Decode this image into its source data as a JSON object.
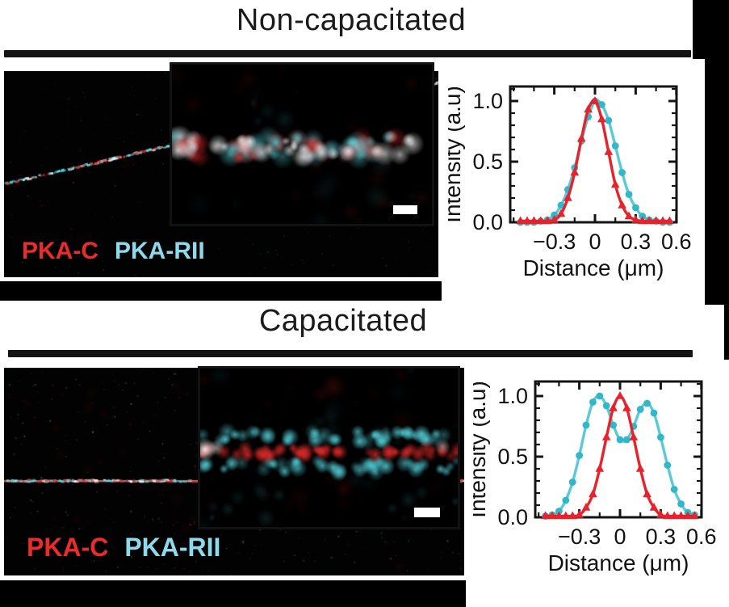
{
  "sections": [
    {
      "title": "Non-capacitated",
      "labels": {
        "red": "PKA-C",
        "cyan": "PKA-RII"
      }
    },
    {
      "title": "Capacitated",
      "labels": {
        "red": "PKA-C",
        "cyan": "PKA-RII"
      }
    }
  ],
  "colors": {
    "red": "#E9212A",
    "cyan": "#5BC9D7",
    "cyan_marker": "#30B7CA",
    "label_red": "#EE2B2B",
    "label_cyan": "#8CDAEB",
    "axis": "#141414",
    "text": "#111111",
    "bar": "#000000"
  },
  "chart_data": [
    {
      "type": "line",
      "section": "Non-capacitated",
      "xlabel": "Distance (μm)",
      "ylabel": "Intensity (a.u)",
      "xlim": [
        -0.62,
        0.63
      ],
      "ylim": [
        0,
        1.12
      ],
      "grid": false,
      "legend": "none",
      "xticks": {
        "values": [
          -0.3,
          0,
          0.3,
          0.6
        ],
        "labels": [
          "−0.3",
          "0",
          "0.3",
          "0.6"
        ],
        "minor": [
          -0.6,
          -0.45,
          -0.15,
          0.15,
          0.45
        ]
      },
      "yticks": {
        "values": [
          0,
          0.5,
          1
        ],
        "labels": [
          "0.0",
          "0.5",
          "1.0"
        ],
        "minor": [
          0.1,
          0.2,
          0.3,
          0.4,
          0.6,
          0.7,
          0.8,
          0.9,
          1.1
        ]
      },
      "x": [
        -0.55,
        -0.5,
        -0.45,
        -0.4,
        -0.35,
        -0.3,
        -0.25,
        -0.2,
        -0.15,
        -0.1,
        -0.05,
        0,
        0.05,
        0.1,
        0.15,
        0.2,
        0.25,
        0.3,
        0.35,
        0.4,
        0.45,
        0.5,
        0.55
      ],
      "series": [
        {
          "name": "PKA-RII",
          "color_key": "cyan",
          "marker": "circle",
          "values": [
            0,
            0,
            0,
            0.01,
            0.02,
            0.06,
            0.14,
            0.27,
            0.45,
            0.67,
            0.87,
            1,
            0.97,
            0.84,
            0.63,
            0.41,
            0.23,
            0.12,
            0.05,
            0.02,
            0.01,
            0,
            0
          ]
        },
        {
          "name": "PKA-C",
          "color_key": "red",
          "marker": "triangle",
          "values": [
            0.01,
            0.01,
            0.01,
            0.01,
            0.01,
            0.02,
            0.07,
            0.2,
            0.41,
            0.69,
            0.93,
            1,
            0.85,
            0.58,
            0.31,
            0.14,
            0.05,
            0.02,
            0.01,
            0.01,
            0.01,
            0.01,
            0.01
          ]
        }
      ]
    },
    {
      "type": "line",
      "section": "Capacitated",
      "xlabel": "Distance (μm)",
      "ylabel": "Intensity (a.u)",
      "xlim": [
        -0.62,
        0.63
      ],
      "ylim": [
        0,
        1.12
      ],
      "grid": false,
      "legend": "none",
      "xticks": {
        "values": [
          -0.3,
          0,
          0.3,
          0.6
        ],
        "labels": [
          "−0.3",
          "0",
          "0.3",
          "0.6"
        ],
        "minor": [
          -0.6,
          -0.45,
          -0.15,
          0.15,
          0.45
        ]
      },
      "yticks": {
        "values": [
          0,
          0.5,
          1
        ],
        "labels": [
          "0.0",
          "0.5",
          "1.0"
        ],
        "minor": [
          0.1,
          0.2,
          0.3,
          0.4,
          0.6,
          0.7,
          0.8,
          0.9,
          1.1
        ]
      },
      "x": [
        -0.55,
        -0.5,
        -0.45,
        -0.4,
        -0.35,
        -0.3,
        -0.25,
        -0.2,
        -0.15,
        -0.1,
        -0.05,
        0,
        0.05,
        0.1,
        0.15,
        0.2,
        0.25,
        0.3,
        0.35,
        0.4,
        0.45,
        0.5,
        0.55
      ],
      "series": [
        {
          "name": "PKA-RII",
          "color_key": "cyan",
          "marker": "circle",
          "values": [
            0.01,
            0.02,
            0.05,
            0.14,
            0.29,
            0.51,
            0.76,
            0.95,
            1,
            0.92,
            0.76,
            0.64,
            0.64,
            0.75,
            0.89,
            0.94,
            0.86,
            0.66,
            0.43,
            0.23,
            0.11,
            0.04,
            0.02
          ]
        },
        {
          "name": "PKA-C",
          "color_key": "red",
          "marker": "triangle",
          "values": [
            0.01,
            0.01,
            0.01,
            0.01,
            0.01,
            0.02,
            0.08,
            0.19,
            0.4,
            0.66,
            0.9,
            1,
            0.9,
            0.66,
            0.4,
            0.19,
            0.08,
            0.02,
            0.01,
            0.01,
            0.01,
            0.01,
            0.01
          ]
        }
      ]
    }
  ]
}
